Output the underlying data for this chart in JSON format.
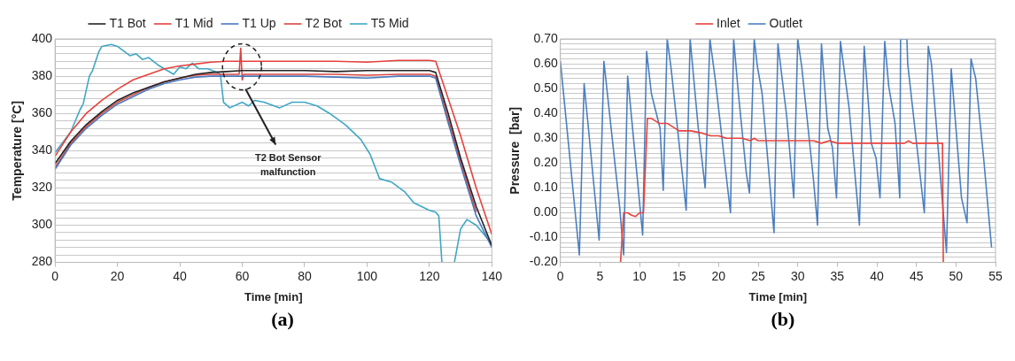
{
  "chart_data": [
    {
      "type": "line",
      "xlabel": "Time [min]",
      "ylabel": "Temperature [°C]",
      "xlim": [
        0,
        140
      ],
      "xticks": [
        0,
        20,
        40,
        60,
        80,
        100,
        120,
        140
      ],
      "ylim": [
        280,
        400
      ],
      "yticks": [
        280,
        {
          "value": 284,
          "label": null
        },
        {
          "value": 288,
          "label": null
        },
        {
          "value": 292,
          "label": null
        },
        {
          "value": 296,
          "label": null
        },
        300,
        {
          "value": 304,
          "label": null
        },
        {
          "value": 308,
          "label": null
        },
        {
          "value": 312,
          "label": null
        },
        {
          "value": 316,
          "label": null
        },
        320,
        {
          "value": 324,
          "label": null
        },
        {
          "value": 328,
          "label": null
        },
        {
          "value": 332,
          "label": null
        },
        {
          "value": 336,
          "label": null
        },
        340,
        {
          "value": 344,
          "label": null
        },
        {
          "value": 348,
          "label": null
        },
        {
          "value": 352,
          "label": null
        },
        {
          "value": 356,
          "label": null
        },
        360,
        {
          "value": 364,
          "label": null
        },
        {
          "value": 368,
          "label": null
        },
        {
          "value": 372,
          "label": null
        },
        {
          "value": 376,
          "label": null
        },
        380,
        {
          "value": 384,
          "label": null
        },
        {
          "value": 388,
          "label": null
        },
        {
          "value": 392,
          "label": null
        },
        {
          "value": 396,
          "label": null
        },
        400
      ],
      "grid": "y",
      "legend": "top",
      "marker": "none",
      "line_style": "solid",
      "x": [
        0,
        5,
        10,
        15,
        20,
        25,
        30,
        35,
        40,
        45,
        50,
        55,
        60,
        70,
        80,
        90,
        100,
        110,
        120,
        122,
        126,
        130,
        135,
        140
      ],
      "series": [
        {
          "name": "T1 Bot",
          "color": "#222222",
          "values": [
            333,
            345,
            354,
            361,
            367,
            371,
            374,
            377,
            379,
            381,
            382,
            382.5,
            383,
            383,
            383,
            382.5,
            383,
            383,
            383,
            382,
            360,
            336,
            310,
            289
          ]
        },
        {
          "name": "T1 Mid",
          "color": "#e8413c",
          "values": [
            337,
            350,
            360,
            367,
            373,
            378,
            381,
            384,
            385.5,
            386.5,
            387.5,
            388,
            388,
            388,
            388,
            388,
            387.5,
            388.5,
            388.5,
            388,
            368,
            348,
            320,
            295
          ]
        },
        {
          "name": "T1 Up",
          "color": "#4a78bd",
          "values": [
            330,
            343,
            352,
            359,
            365,
            369,
            373,
            376,
            378,
            379.5,
            380,
            380,
            380,
            380,
            380,
            379.5,
            379,
            380,
            380,
            379,
            355,
            332,
            305,
            288
          ]
        },
        {
          "name": "T2 Bot",
          "color": "#d9443f",
          "x": [
            0,
            5,
            10,
            15,
            20,
            25,
            30,
            35,
            40,
            45,
            50,
            55,
            59,
            59.5,
            60,
            60.5,
            70,
            80,
            90,
            100,
            110,
            120,
            122,
            126,
            130,
            135
          ],
          "values": [
            331,
            344,
            353,
            360,
            366,
            370,
            374,
            377,
            379,
            380.5,
            381,
            381,
            381,
            395,
            378,
            381,
            381,
            381,
            381,
            380.5,
            381,
            381,
            380,
            357,
            334,
            307
          ]
        },
        {
          "name": "T5 Mid",
          "color": "#3ea7c4",
          "x": [
            0,
            5,
            8,
            9,
            11,
            12,
            14,
            15,
            18,
            20,
            24,
            26,
            28,
            30,
            33,
            36,
            38,
            40,
            42,
            44,
            46,
            49,
            52,
            53,
            54,
            56,
            60,
            62,
            64,
            67,
            72,
            76,
            80,
            84,
            88,
            93,
            98,
            101,
            104,
            108,
            112,
            115,
            120,
            122,
            123,
            124,
            127.5,
            128,
            130,
            132,
            135,
            140
          ],
          "values": [
            339,
            350,
            362,
            365,
            380,
            383,
            393,
            396,
            397,
            396,
            391,
            392,
            389,
            390,
            386,
            383,
            381,
            385,
            384,
            387,
            384,
            384,
            382,
            381,
            366,
            363,
            366,
            364,
            367,
            366,
            363,
            366,
            366,
            364,
            360,
            354,
            346,
            338,
            325,
            323,
            318,
            312,
            308,
            307,
            305,
            280,
            null,
            280,
            298,
            303,
            300,
            290
          ]
        }
      ],
      "annotations": [
        "T2 Bot Sensor malfunction"
      ],
      "title": "(a)"
    },
    {
      "type": "line",
      "xlabel": "Time [min]",
      "ylabel": "Pressure  [bar]",
      "xlim": [
        0,
        55
      ],
      "xticks": [
        0,
        5,
        10,
        15,
        20,
        25,
        30,
        35,
        40,
        45,
        50,
        55
      ],
      "ylim": [
        -0.2,
        0.7
      ],
      "yticks": [
        {
          "value": -0.2,
          "label": "-0.20"
        },
        {
          "value": -0.18,
          "label": null
        },
        {
          "value": -0.16,
          "label": null
        },
        {
          "value": -0.14,
          "label": null
        },
        {
          "value": -0.12,
          "label": null
        },
        {
          "value": -0.1,
          "label": "-0.10"
        },
        {
          "value": -0.08,
          "label": null
        },
        {
          "value": -0.06,
          "label": null
        },
        {
          "value": -0.04,
          "label": null
        },
        {
          "value": -0.02,
          "label": null
        },
        {
          "value": 0,
          "label": "0.00"
        },
        {
          "value": 0.02,
          "label": null
        },
        {
          "value": 0.04,
          "label": null
        },
        {
          "value": 0.06,
          "label": null
        },
        {
          "value": 0.08,
          "label": null
        },
        {
          "value": 0.1,
          "label": "0.10"
        },
        {
          "value": 0.12,
          "label": null
        },
        {
          "value": 0.14,
          "label": null
        },
        {
          "value": 0.16,
          "label": null
        },
        {
          "value": 0.18,
          "label": null
        },
        {
          "value": 0.2,
          "label": "0.20"
        },
        {
          "value": 0.22,
          "label": null
        },
        {
          "value": 0.24,
          "label": null
        },
        {
          "value": 0.26,
          "label": null
        },
        {
          "value": 0.28,
          "label": null
        },
        {
          "value": 0.3,
          "label": "0.30"
        },
        {
          "value": 0.32,
          "label": null
        },
        {
          "value": 0.34,
          "label": null
        },
        {
          "value": 0.36,
          "label": null
        },
        {
          "value": 0.38,
          "label": null
        },
        {
          "value": 0.4,
          "label": "0.40"
        },
        {
          "value": 0.42,
          "label": null
        },
        {
          "value": 0.44,
          "label": null
        },
        {
          "value": 0.46,
          "label": null
        },
        {
          "value": 0.48,
          "label": null
        },
        {
          "value": 0.5,
          "label": "0.50"
        },
        {
          "value": 0.52,
          "label": null
        },
        {
          "value": 0.54,
          "label": null
        },
        {
          "value": 0.56,
          "label": null
        },
        {
          "value": 0.58,
          "label": null
        },
        {
          "value": 0.6,
          "label": "0.60"
        },
        {
          "value": 0.62,
          "label": null
        },
        {
          "value": 0.64,
          "label": null
        },
        {
          "value": 0.66,
          "label": null
        },
        {
          "value": 0.68,
          "label": null
        },
        {
          "value": 0.7,
          "label": "0.70"
        }
      ],
      "grid": "y",
      "legend": "top",
      "marker": "none",
      "line_style": "solid",
      "series": [
        {
          "name": "Inlet",
          "color": "#e8413c",
          "x": [
            7.6,
            8.0,
            8.5,
            9.0,
            9.5,
            10.0,
            10.5,
            11.0,
            11.5,
            12.5,
            13.5,
            15,
            16.5,
            18,
            19,
            20,
            21,
            23,
            24,
            24.5,
            25,
            30,
            32,
            33,
            34,
            35,
            40,
            43.5,
            44,
            44.5,
            48.3,
            48.4
          ],
          "values": [
            -0.2,
            0.0,
            0.0,
            -0.01,
            -0.015,
            0.0,
            0.0,
            0.38,
            0.38,
            0.36,
            0.36,
            0.33,
            0.33,
            0.32,
            0.31,
            0.31,
            0.3,
            0.3,
            0.29,
            0.3,
            0.29,
            0.29,
            0.29,
            0.28,
            0.29,
            0.28,
            0.28,
            0.28,
            0.29,
            0.28,
            0.28,
            -0.2
          ]
        },
        {
          "name": "Outlet",
          "color": "#4a7fc0",
          "x": [
            0,
            2.4,
            3.0,
            4.9,
            5.5,
            7.5,
            8.0,
            8.5,
            10.4,
            10.9,
            11.5,
            12.6,
            13.0,
            13.5,
            14.0,
            15.9,
            16.4,
            17.4,
            18.3,
            18.9,
            19.6,
            21.5,
            21.9,
            22.5,
            23.5,
            23.9,
            24.5,
            24.9,
            25.5,
            27.0,
            27.5,
            28.6,
            29.5,
            30.0,
            30.5,
            32.0,
            32.5,
            33.0,
            33.8,
            34.4,
            34.9,
            35.4,
            36.5,
            37.8,
            38.4,
            39.3,
            39.9,
            40.4,
            41.0,
            41.5,
            42.3,
            42.9,
            43.0,
            43.8,
            43.9,
            46.0,
            46.5,
            46.9,
            48.8,
            49.4,
            50.7,
            51.4,
            51.9,
            52.5,
            53.5,
            54.5
          ],
          "values": [
            0.61,
            -0.17,
            0.52,
            -0.11,
            0.61,
            0.02,
            -0.17,
            0.55,
            -0.09,
            0.65,
            0.48,
            0.34,
            0.09,
            0.7,
            0.58,
            0.01,
            0.7,
            0.35,
            0.1,
            0.7,
            0.53,
            0.0,
            0.7,
            0.48,
            0.16,
            0.08,
            0.7,
            0.59,
            0.48,
            -0.08,
            0.68,
            0.39,
            0.06,
            0.7,
            0.59,
            0.13,
            -0.05,
            0.68,
            0.34,
            0.26,
            0.06,
            0.69,
            0.42,
            -0.05,
            0.67,
            0.28,
            0.22,
            0.06,
            0.69,
            0.51,
            0.36,
            0.06,
            0.7,
            0.7,
            0.6,
            0.0,
            0.67,
            0.6,
            -0.16,
            0.58,
            0.06,
            -0.04,
            0.62,
            0.54,
            0.22,
            -0.14
          ]
        }
      ],
      "title": "(b)"
    }
  ]
}
